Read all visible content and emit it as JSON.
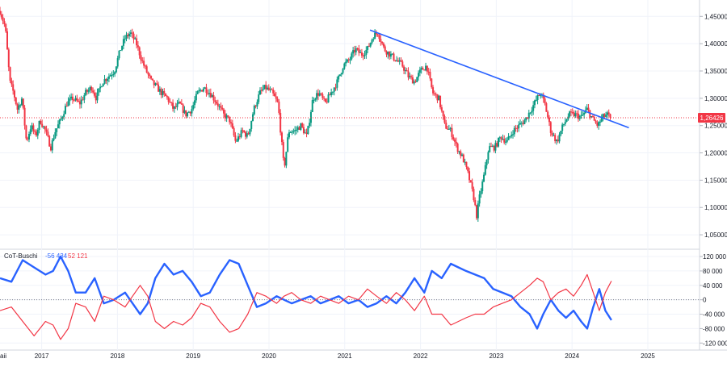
{
  "chart_data": [
    {
      "type": "candlestick",
      "instrument_label": "",
      "last_price": 1.26426,
      "last_price_label": "1,26426",
      "y_ticks": [
        1.05,
        1.1,
        1.15,
        1.2,
        1.25,
        1.3,
        1.35,
        1.4,
        1.45
      ],
      "y_tick_labels": [
        "1,05000",
        "1,10000",
        "1,15000",
        "1,20000",
        "1,25000",
        "1,30000",
        "1,35000",
        "1,40000",
        "1,45000"
      ],
      "ylim": [
        1.025,
        1.48
      ],
      "x_ticks": [
        "2017",
        "2018",
        "2019",
        "2020",
        "2021",
        "2022",
        "2023",
        "2024",
        "2025"
      ],
      "x_first_partial_label": "aii",
      "trendline": {
        "start": {
          "date": "2021-05",
          "price": 1.425
        },
        "end": {
          "date": "2024-10",
          "price": 1.246
        },
        "color": "#2962ff"
      },
      "colors": {
        "up": "#089981",
        "down": "#f23645",
        "last_price_line": "#f23645",
        "trendline": "#2962ff"
      },
      "path": [
        [
          2016.45,
          1.46
        ],
        [
          2016.52,
          1.43
        ],
        [
          2016.58,
          1.33
        ],
        [
          2016.63,
          1.31
        ],
        [
          2016.68,
          1.28
        ],
        [
          2016.74,
          1.3
        ],
        [
          2016.8,
          1.22
        ],
        [
          2016.86,
          1.25
        ],
        [
          2016.92,
          1.23
        ],
        [
          2016.98,
          1.26
        ],
        [
          2017.05,
          1.24
        ],
        [
          2017.12,
          1.21
        ],
        [
          2017.18,
          1.24
        ],
        [
          2017.25,
          1.26
        ],
        [
          2017.33,
          1.29
        ],
        [
          2017.41,
          1.3
        ],
        [
          2017.5,
          1.29
        ],
        [
          2017.58,
          1.31
        ],
        [
          2017.66,
          1.32
        ],
        [
          2017.72,
          1.3
        ],
        [
          2017.8,
          1.33
        ],
        [
          2017.88,
          1.34
        ],
        [
          2017.96,
          1.35
        ],
        [
          2018.04,
          1.39
        ],
        [
          2018.1,
          1.41
        ],
        [
          2018.17,
          1.42
        ],
        [
          2018.25,
          1.4
        ],
        [
          2018.32,
          1.37
        ],
        [
          2018.38,
          1.35
        ],
        [
          2018.45,
          1.33
        ],
        [
          2018.52,
          1.32
        ],
        [
          2018.58,
          1.31
        ],
        [
          2018.66,
          1.3
        ],
        [
          2018.74,
          1.28
        ],
        [
          2018.82,
          1.29
        ],
        [
          2018.9,
          1.27
        ],
        [
          2018.98,
          1.28
        ],
        [
          2019.06,
          1.31
        ],
        [
          2019.14,
          1.32
        ],
        [
          2019.22,
          1.31
        ],
        [
          2019.32,
          1.29
        ],
        [
          2019.4,
          1.27
        ],
        [
          2019.48,
          1.26
        ],
        [
          2019.56,
          1.22
        ],
        [
          2019.65,
          1.24
        ],
        [
          2019.72,
          1.23
        ],
        [
          2019.8,
          1.28
        ],
        [
          2019.88,
          1.31
        ],
        [
          2019.95,
          1.32
        ],
        [
          2020.04,
          1.31
        ],
        [
          2020.12,
          1.29
        ],
        [
          2020.2,
          1.17
        ],
        [
          2020.26,
          1.24
        ],
        [
          2020.34,
          1.24
        ],
        [
          2020.42,
          1.25
        ],
        [
          2020.5,
          1.23
        ],
        [
          2020.58,
          1.3
        ],
        [
          2020.66,
          1.31
        ],
        [
          2020.74,
          1.29
        ],
        [
          2020.82,
          1.31
        ],
        [
          2020.9,
          1.33
        ],
        [
          2020.98,
          1.36
        ],
        [
          2021.06,
          1.37
        ],
        [
          2021.14,
          1.39
        ],
        [
          2021.22,
          1.38
        ],
        [
          2021.3,
          1.39
        ],
        [
          2021.38,
          1.415
        ],
        [
          2021.44,
          1.42
        ],
        [
          2021.52,
          1.39
        ],
        [
          2021.6,
          1.38
        ],
        [
          2021.68,
          1.37
        ],
        [
          2021.76,
          1.36
        ],
        [
          2021.84,
          1.34
        ],
        [
          2021.92,
          1.33
        ],
        [
          2022.0,
          1.35
        ],
        [
          2022.08,
          1.36
        ],
        [
          2022.16,
          1.31
        ],
        [
          2022.24,
          1.3
        ],
        [
          2022.32,
          1.25
        ],
        [
          2022.4,
          1.24
        ],
        [
          2022.48,
          1.21
        ],
        [
          2022.56,
          1.19
        ],
        [
          2022.63,
          1.16
        ],
        [
          2022.7,
          1.12
        ],
        [
          2022.74,
          1.085
        ],
        [
          2022.78,
          1.12
        ],
        [
          2022.84,
          1.16
        ],
        [
          2022.9,
          1.21
        ],
        [
          2022.98,
          1.21
        ],
        [
          2023.06,
          1.23
        ],
        [
          2023.14,
          1.22
        ],
        [
          2023.22,
          1.24
        ],
        [
          2023.3,
          1.25
        ],
        [
          2023.38,
          1.26
        ],
        [
          2023.46,
          1.28
        ],
        [
          2023.54,
          1.3
        ],
        [
          2023.58,
          1.31
        ],
        [
          2023.64,
          1.29
        ],
        [
          2023.72,
          1.24
        ],
        [
          2023.8,
          1.22
        ],
        [
          2023.88,
          1.25
        ],
        [
          2023.96,
          1.27
        ],
        [
          2024.04,
          1.27
        ],
        [
          2024.12,
          1.265
        ],
        [
          2024.2,
          1.28
        ],
        [
          2024.28,
          1.26
        ],
        [
          2024.34,
          1.25
        ],
        [
          2024.4,
          1.265
        ],
        [
          2024.46,
          1.27
        ],
        [
          2024.52,
          1.264
        ]
      ]
    },
    {
      "type": "line",
      "name": "CoT-Buschi",
      "value_labels": [
        "-56 434",
        "52 121"
      ],
      "y_ticks": [
        120000,
        80000,
        40000,
        0,
        -40000,
        -80000,
        -120000
      ],
      "y_tick_labels": [
        "120 000",
        "80 000",
        "40 000",
        "0",
        "-40 000",
        "-80 000",
        "-120 000"
      ],
      "ylim": [
        -135000,
        138000
      ],
      "series": [
        {
          "color": "#2962ff",
          "last_value": -56434,
          "points": [
            [
              2016.45,
              60000
            ],
            [
              2016.6,
              50000
            ],
            [
              2016.75,
              110000
            ],
            [
              2016.9,
              90000
            ],
            [
              2017.05,
              70000
            ],
            [
              2017.15,
              80000
            ],
            [
              2017.25,
              120000
            ],
            [
              2017.35,
              80000
            ],
            [
              2017.45,
              20000
            ],
            [
              2017.58,
              20000
            ],
            [
              2017.7,
              60000
            ],
            [
              2017.82,
              -10000
            ],
            [
              2017.95,
              0
            ],
            [
              2018.1,
              20000
            ],
            [
              2018.2,
              -10000
            ],
            [
              2018.3,
              -40000
            ],
            [
              2018.4,
              -10000
            ],
            [
              2018.5,
              60000
            ],
            [
              2018.62,
              100000
            ],
            [
              2018.74,
              70000
            ],
            [
              2018.86,
              80000
            ],
            [
              2018.98,
              50000
            ],
            [
              2019.1,
              10000
            ],
            [
              2019.22,
              20000
            ],
            [
              2019.35,
              70000
            ],
            [
              2019.48,
              110000
            ],
            [
              2019.6,
              100000
            ],
            [
              2019.72,
              40000
            ],
            [
              2019.84,
              -20000
            ],
            [
              2019.96,
              -10000
            ],
            [
              2020.1,
              10000
            ],
            [
              2020.2,
              0
            ],
            [
              2020.3,
              -10000
            ],
            [
              2020.42,
              0
            ],
            [
              2020.55,
              10000
            ],
            [
              2020.68,
              -10000
            ],
            [
              2020.8,
              0
            ],
            [
              2020.92,
              10000
            ],
            [
              2021.05,
              -10000
            ],
            [
              2021.18,
              0
            ],
            [
              2021.3,
              -20000
            ],
            [
              2021.42,
              -10000
            ],
            [
              2021.55,
              10000
            ],
            [
              2021.68,
              -10000
            ],
            [
              2021.8,
              20000
            ],
            [
              2021.92,
              60000
            ],
            [
              2022.05,
              20000
            ],
            [
              2022.15,
              80000
            ],
            [
              2022.28,
              60000
            ],
            [
              2022.4,
              100000
            ],
            [
              2022.5,
              90000
            ],
            [
              2022.6,
              80000
            ],
            [
              2022.72,
              70000
            ],
            [
              2022.84,
              60000
            ],
            [
              2022.96,
              30000
            ],
            [
              2023.08,
              20000
            ],
            [
              2023.2,
              10000
            ],
            [
              2023.32,
              -20000
            ],
            [
              2023.44,
              -40000
            ],
            [
              2023.54,
              -80000
            ],
            [
              2023.62,
              -40000
            ],
            [
              2023.72,
              0
            ],
            [
              2023.82,
              -30000
            ],
            [
              2023.92,
              -50000
            ],
            [
              2024.02,
              -30000
            ],
            [
              2024.12,
              -60000
            ],
            [
              2024.2,
              -80000
            ],
            [
              2024.28,
              -20000
            ],
            [
              2024.36,
              30000
            ],
            [
              2024.44,
              -30000
            ],
            [
              2024.52,
              -56434
            ]
          ]
        },
        {
          "color": "#f23645",
          "last_value": 52121,
          "points": [
            [
              2016.45,
              -30000
            ],
            [
              2016.6,
              -20000
            ],
            [
              2016.75,
              -60000
            ],
            [
              2016.9,
              -100000
            ],
            [
              2017.05,
              -60000
            ],
            [
              2017.15,
              -70000
            ],
            [
              2017.25,
              -110000
            ],
            [
              2017.35,
              -80000
            ],
            [
              2017.45,
              -10000
            ],
            [
              2017.58,
              -20000
            ],
            [
              2017.7,
              -60000
            ],
            [
              2017.82,
              10000
            ],
            [
              2017.95,
              0
            ],
            [
              2018.1,
              -20000
            ],
            [
              2018.2,
              10000
            ],
            [
              2018.3,
              40000
            ],
            [
              2018.4,
              10000
            ],
            [
              2018.5,
              -60000
            ],
            [
              2018.62,
              -80000
            ],
            [
              2018.74,
              -60000
            ],
            [
              2018.86,
              -70000
            ],
            [
              2018.98,
              -50000
            ],
            [
              2019.1,
              -10000
            ],
            [
              2019.22,
              -20000
            ],
            [
              2019.35,
              -60000
            ],
            [
              2019.48,
              -90000
            ],
            [
              2019.6,
              -80000
            ],
            [
              2019.72,
              -40000
            ],
            [
              2019.84,
              20000
            ],
            [
              2019.96,
              10000
            ],
            [
              2020.1,
              -10000
            ],
            [
              2020.2,
              10000
            ],
            [
              2020.3,
              20000
            ],
            [
              2020.42,
              0
            ],
            [
              2020.55,
              -10000
            ],
            [
              2020.68,
              10000
            ],
            [
              2020.8,
              0
            ],
            [
              2020.92,
              -10000
            ],
            [
              2021.05,
              10000
            ],
            [
              2021.18,
              0
            ],
            [
              2021.3,
              30000
            ],
            [
              2021.42,
              10000
            ],
            [
              2021.55,
              -10000
            ],
            [
              2021.68,
              20000
            ],
            [
              2021.8,
              0
            ],
            [
              2021.92,
              -30000
            ],
            [
              2022.05,
              10000
            ],
            [
              2022.15,
              -40000
            ],
            [
              2022.28,
              -40000
            ],
            [
              2022.4,
              -70000
            ],
            [
              2022.5,
              -60000
            ],
            [
              2022.6,
              -50000
            ],
            [
              2022.72,
              -40000
            ],
            [
              2022.84,
              -40000
            ],
            [
              2022.96,
              -20000
            ],
            [
              2023.08,
              -10000
            ],
            [
              2023.2,
              0
            ],
            [
              2023.32,
              20000
            ],
            [
              2023.44,
              40000
            ],
            [
              2023.54,
              60000
            ],
            [
              2023.62,
              50000
            ],
            [
              2023.72,
              0
            ],
            [
              2023.82,
              20000
            ],
            [
              2023.92,
              30000
            ],
            [
              2024.02,
              10000
            ],
            [
              2024.12,
              40000
            ],
            [
              2024.2,
              70000
            ],
            [
              2024.28,
              20000
            ],
            [
              2024.36,
              -30000
            ],
            [
              2024.44,
              20000
            ],
            [
              2024.52,
              52121
            ]
          ]
        }
      ]
    }
  ]
}
